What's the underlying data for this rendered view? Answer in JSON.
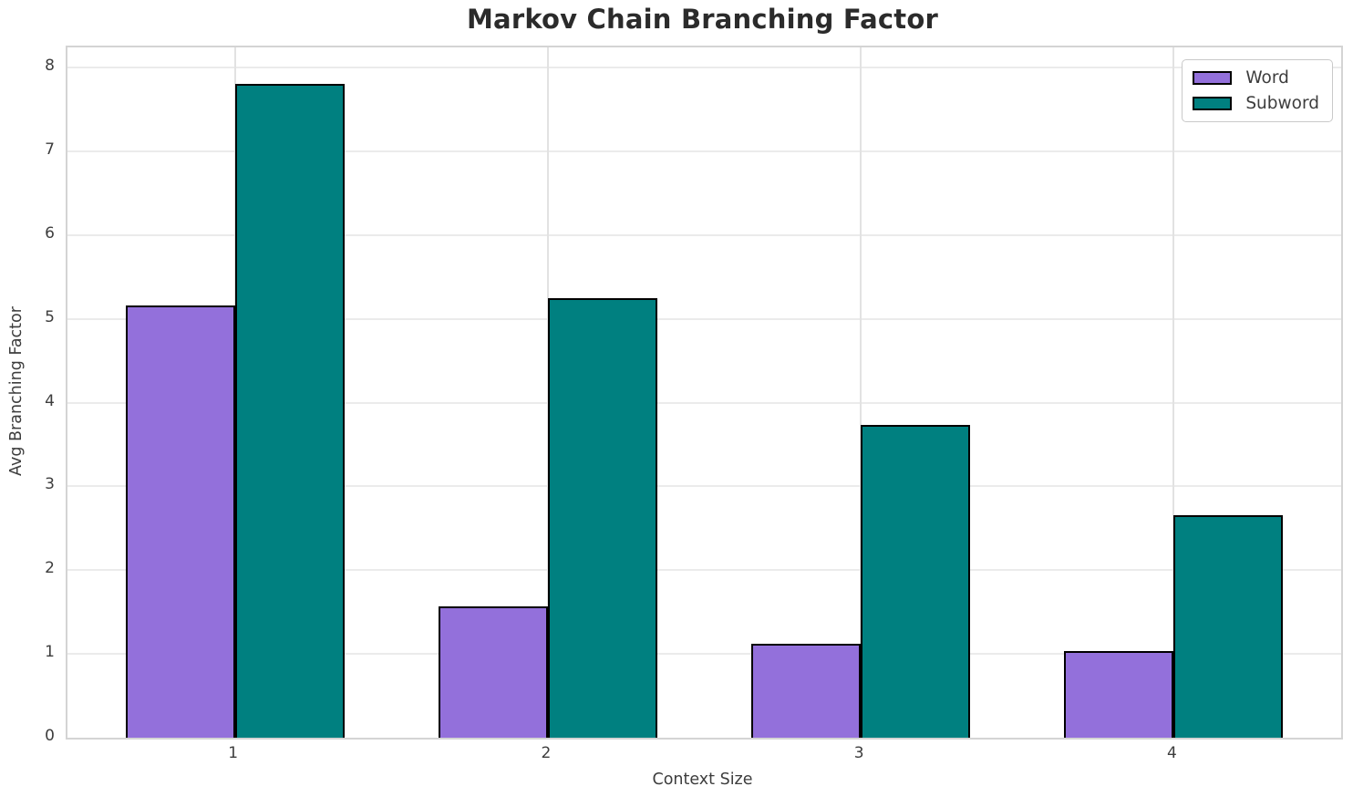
{
  "chart_data": {
    "type": "bar",
    "title": "Markov Chain Branching Factor",
    "xlabel": "Context Size",
    "ylabel": "Avg Branching Factor",
    "categories": [
      "1",
      "2",
      "3",
      "4"
    ],
    "series": [
      {
        "name": "Word",
        "color": "#9370db",
        "values": [
          5.16,
          1.57,
          1.12,
          1.03
        ]
      },
      {
        "name": "Subword",
        "color": "#008080",
        "values": [
          7.81,
          5.25,
          3.73,
          2.66
        ]
      }
    ],
    "ylim": [
      0,
      8.24
    ],
    "yticks": [
      0,
      1,
      2,
      3,
      4,
      5,
      6,
      7,
      8
    ],
    "bar_width": 0.35,
    "grid": true,
    "legend_position": "upper right",
    "bar_edge_color": "#000000",
    "text_color": "#3d3d3d",
    "title_color": "#2b2b2b"
  }
}
